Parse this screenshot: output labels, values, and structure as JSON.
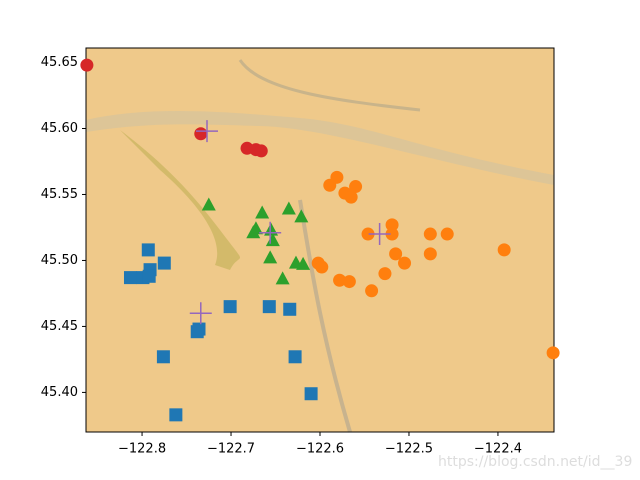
{
  "chart_data": {
    "type": "scatter",
    "annotation": "https://blog.csdn.net/id__39",
    "xlim": [
      -122.863,
      -122.337
    ],
    "ylim": [
      45.37,
      45.661
    ],
    "xticks": [
      {
        "value": -122.8,
        "label": "−122.8"
      },
      {
        "value": -122.7,
        "label": "−122.7"
      },
      {
        "value": -122.6,
        "label": "−122.6"
      },
      {
        "value": -122.5,
        "label": "−122.5"
      },
      {
        "value": -122.4,
        "label": "−122.4"
      }
    ],
    "yticks": [
      {
        "value": 45.4,
        "label": "45.40"
      },
      45.45,
      {
        "value": 45.5,
        "label": "45.50"
      },
      45.55,
      {
        "value": 45.6,
        "label": "45.60"
      },
      45.65
    ],
    "series": [
      {
        "color": "#d62728",
        "marker": "circle",
        "x": [
          -122.862,
          -122.734,
          -122.682,
          -122.672,
          -122.666
        ],
        "values": [
          45.648,
          45.596,
          45.585,
          45.584,
          45.583
        ]
      },
      {
        "color": "#ff7f0e",
        "marker": "circle",
        "x": [
          -122.589,
          -122.581,
          -122.572,
          -122.565,
          -122.56,
          -122.546,
          -122.519,
          -122.519,
          -122.515,
          -122.505,
          -122.476,
          -122.457,
          -122.476,
          -122.393,
          -122.527,
          -122.602,
          -122.598,
          -122.578,
          -122.567,
          -122.542,
          -122.338
        ],
        "values": [
          45.557,
          45.563,
          45.551,
          45.548,
          45.556,
          45.52,
          45.527,
          45.52,
          45.505,
          45.498,
          45.52,
          45.52,
          45.505,
          45.508,
          45.49,
          45.498,
          45.495,
          45.485,
          45.484,
          45.477,
          45.43
        ]
      },
      {
        "color": "#2ca02c",
        "marker": "triangle",
        "x": [
          -122.725,
          -122.665,
          -122.635,
          -122.672,
          -122.675,
          -122.655,
          -122.653,
          -122.621,
          -122.656,
          -122.627,
          -122.619,
          -122.642
        ],
        "values": [
          45.542,
          45.536,
          45.539,
          45.524,
          45.521,
          45.523,
          45.515,
          45.533,
          45.502,
          45.498,
          45.497,
          45.486
        ]
      },
      {
        "color": "#1f77b4",
        "marker": "square",
        "x": [
          -122.793,
          -122.775,
          -122.791,
          -122.799,
          -122.813,
          -122.792,
          -122.701,
          -122.736,
          -122.738,
          -122.657,
          -122.634,
          -122.776,
          -122.628,
          -122.61,
          -122.762
        ],
        "values": [
          45.508,
          45.498,
          45.493,
          45.487,
          45.487,
          45.488,
          45.465,
          45.448,
          45.446,
          45.465,
          45.463,
          45.427,
          45.427,
          45.399,
          45.383
        ]
      },
      {
        "color": "#9467bd",
        "marker": "plus",
        "x": [
          -122.727,
          -122.734,
          -122.533,
          -122.656
        ],
        "values": [
          45.598,
          45.46,
          45.52,
          45.521
        ]
      }
    ]
  }
}
